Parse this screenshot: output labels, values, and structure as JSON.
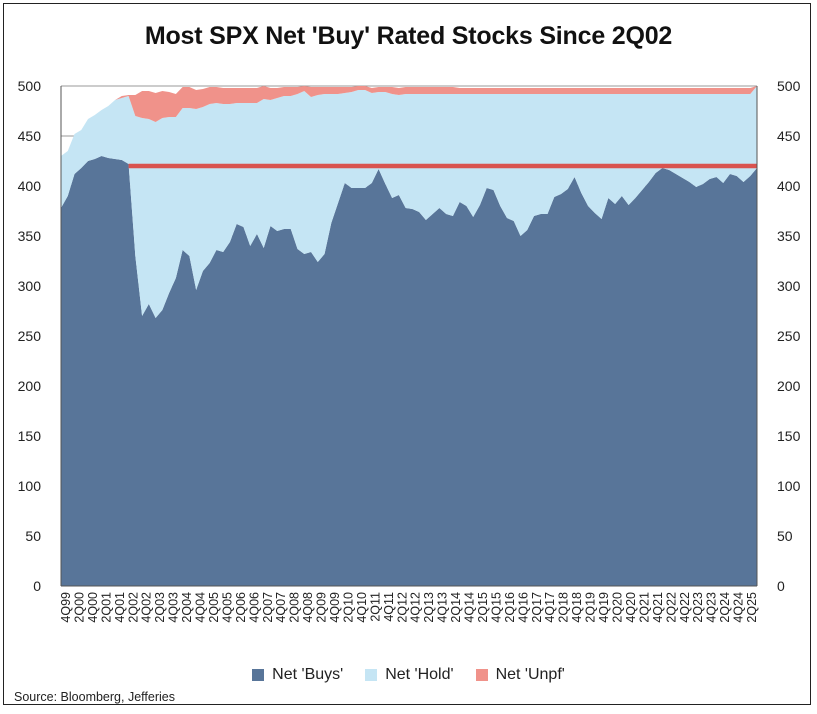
{
  "chart_data": {
    "type": "area",
    "title": "Most SPX Net 'Buy' Rated Stocks Since 2Q02",
    "source": "Source: Bloomberg, Jefferies",
    "ylim": [
      0,
      500
    ],
    "yticks": [
      0,
      50,
      100,
      150,
      200,
      250,
      300,
      350,
      400,
      450,
      500
    ],
    "reference_line": {
      "value": 420,
      "color": "#D9534F"
    },
    "x_labels": [
      "4Q99",
      "2Q00",
      "4Q00",
      "2Q01",
      "4Q01",
      "2Q02",
      "4Q02",
      "2Q03",
      "4Q03",
      "2Q04",
      "4Q04",
      "2Q05",
      "4Q05",
      "2Q06",
      "4Q06",
      "2Q07",
      "4Q07",
      "2Q08",
      "4Q08",
      "2Q09",
      "4Q09",
      "2Q10",
      "4Q10",
      "2Q11",
      "4Q11",
      "2Q12",
      "4Q12",
      "2Q13",
      "4Q13",
      "2Q14",
      "4Q14",
      "2Q15",
      "4Q15",
      "2Q16",
      "4Q16",
      "2Q17",
      "4Q17",
      "2Q18",
      "4Q18",
      "2Q19",
      "4Q19",
      "2Q20",
      "4Q20",
      "2Q21",
      "4Q21",
      "2Q22",
      "4Q22",
      "2Q23",
      "4Q23",
      "2Q24",
      "4Q24",
      "2Q25"
    ],
    "series": [
      {
        "name": "Net 'Buys'",
        "color": "#587599",
        "values": [
          378,
          390,
          412,
          418,
          425,
          427,
          430,
          428,
          427,
          426,
          422,
          330,
          270,
          282,
          268,
          276,
          293,
          308,
          336,
          330,
          296,
          315,
          323,
          336,
          334,
          344,
          362,
          359,
          340,
          352,
          338,
          360,
          355,
          357,
          357,
          337,
          332,
          334,
          324,
          332,
          363,
          383,
          403,
          398,
          398,
          398,
          403,
          417,
          402,
          388,
          391,
          378,
          377,
          374,
          366,
          372,
          378,
          372,
          370,
          384,
          380,
          369,
          381,
          398,
          396,
          380,
          368,
          365,
          350,
          356,
          370,
          372,
          372,
          389,
          392,
          397,
          409,
          393,
          380,
          373,
          367,
          388,
          382,
          390,
          381,
          388,
          396,
          404,
          413,
          418,
          416,
          412,
          408,
          404,
          399,
          402,
          407,
          409,
          403,
          412,
          410,
          404,
          410,
          418
        ]
      },
      {
        "name": "Net 'Hold'",
        "color": "#C5E5F4",
        "values": [
          52,
          45,
          40,
          38,
          42,
          44,
          46,
          52,
          59,
          62,
          68,
          140,
          198,
          185,
          196,
          192,
          176,
          161,
          142,
          148,
          181,
          164,
          159,
          147,
          148,
          138,
          121,
          124,
          143,
          131,
          149,
          126,
          133,
          133,
          133,
          155,
          163,
          155,
          167,
          160,
          129,
          109,
          90,
          96,
          98,
          98,
          90,
          77,
          92,
          104,
          100,
          114,
          115,
          118,
          126,
          120,
          114,
          120,
          122,
          108,
          112,
          123,
          111,
          94,
          96,
          112,
          124,
          127,
          142,
          136,
          122,
          120,
          120,
          103,
          100,
          95,
          83,
          99,
          112,
          119,
          125,
          104,
          110,
          102,
          111,
          104,
          96,
          88,
          79,
          74,
          76,
          80,
          84,
          88,
          93,
          90,
          85,
          83,
          89,
          80,
          82,
          88,
          82,
          82
        ]
      },
      {
        "name": "Net 'Unpf'",
        "color": "#F0928A",
        "values": [
          0,
          0,
          0,
          0,
          0,
          0,
          0,
          0,
          0,
          2,
          1,
          21,
          27,
          28,
          29,
          27,
          25,
          23,
          21,
          21,
          19,
          18,
          17,
          16,
          16,
          16,
          15,
          15,
          15,
          15,
          13,
          12,
          10,
          9,
          9,
          7,
          5,
          10,
          8,
          7,
          7,
          7,
          6,
          5,
          4,
          4,
          5,
          5,
          5,
          7,
          7,
          7,
          7,
          7,
          7,
          7,
          7,
          7,
          7,
          6,
          6,
          6,
          6,
          6,
          6,
          6,
          6,
          6,
          6,
          6,
          6,
          6,
          6,
          6,
          6,
          6,
          6,
          6,
          6,
          6,
          6,
          6,
          6,
          6,
          6,
          6,
          6,
          6,
          6,
          6,
          6,
          6,
          6,
          6,
          6,
          6,
          6,
          6,
          6,
          6,
          6,
          6,
          6,
          0
        ]
      }
    ],
    "legend": {
      "position": "bottom"
    }
  }
}
